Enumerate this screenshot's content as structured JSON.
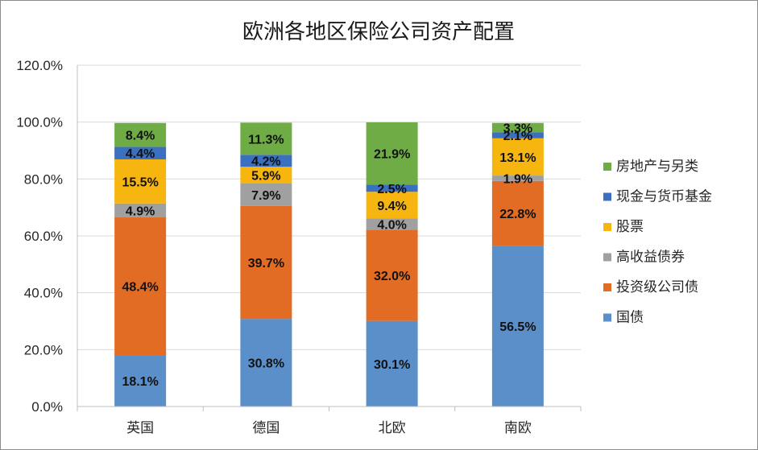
{
  "chart_data": {
    "type": "bar",
    "stacked": true,
    "title": "欧洲各地区保险公司资产配置",
    "xlabel": "",
    "ylabel": "",
    "categories": [
      "英国",
      "德国",
      "北欧",
      "南欧"
    ],
    "ylim": [
      0,
      120
    ],
    "yticks": [
      "0.0%",
      "20.0%",
      "40.0%",
      "60.0%",
      "80.0%",
      "100.0%",
      "120.0%"
    ],
    "grid": true,
    "legend_position": "right",
    "series": [
      {
        "name": "国债",
        "color": "#5b8fc9",
        "values": [
          18.1,
          30.8,
          30.1,
          56.5
        ],
        "labels": [
          "18.1%",
          "30.8%",
          "30.1%",
          "56.5%"
        ]
      },
      {
        "name": "投资级公司债",
        "color": "#e36c24",
        "values": [
          48.4,
          39.7,
          32.0,
          22.8
        ],
        "labels": [
          "48.4%",
          "39.7%",
          "32.0%",
          "22.8%"
        ]
      },
      {
        "name": "高收益债券",
        "color": "#a0a0a0",
        "values": [
          4.9,
          7.9,
          4.0,
          1.9
        ],
        "labels": [
          "4.9%",
          "7.9%",
          "4.0%",
          "1.9%"
        ]
      },
      {
        "name": "股票",
        "color": "#f6b60f",
        "values": [
          15.5,
          5.9,
          9.4,
          13.1
        ],
        "labels": [
          "15.5%",
          "5.9%",
          "9.4%",
          "13.1%"
        ]
      },
      {
        "name": "现金与货币基金",
        "color": "#3b6fbf",
        "values": [
          4.4,
          4.2,
          2.5,
          2.1
        ],
        "labels": [
          "4.4%",
          "4.2%",
          "2.5%",
          "2.1%"
        ]
      },
      {
        "name": "房地产与另类",
        "color": "#6fac46",
        "values": [
          8.4,
          11.3,
          21.9,
          3.3
        ],
        "labels": [
          "8.4%",
          "11.3%",
          "21.9%",
          "3.3%"
        ]
      }
    ]
  }
}
